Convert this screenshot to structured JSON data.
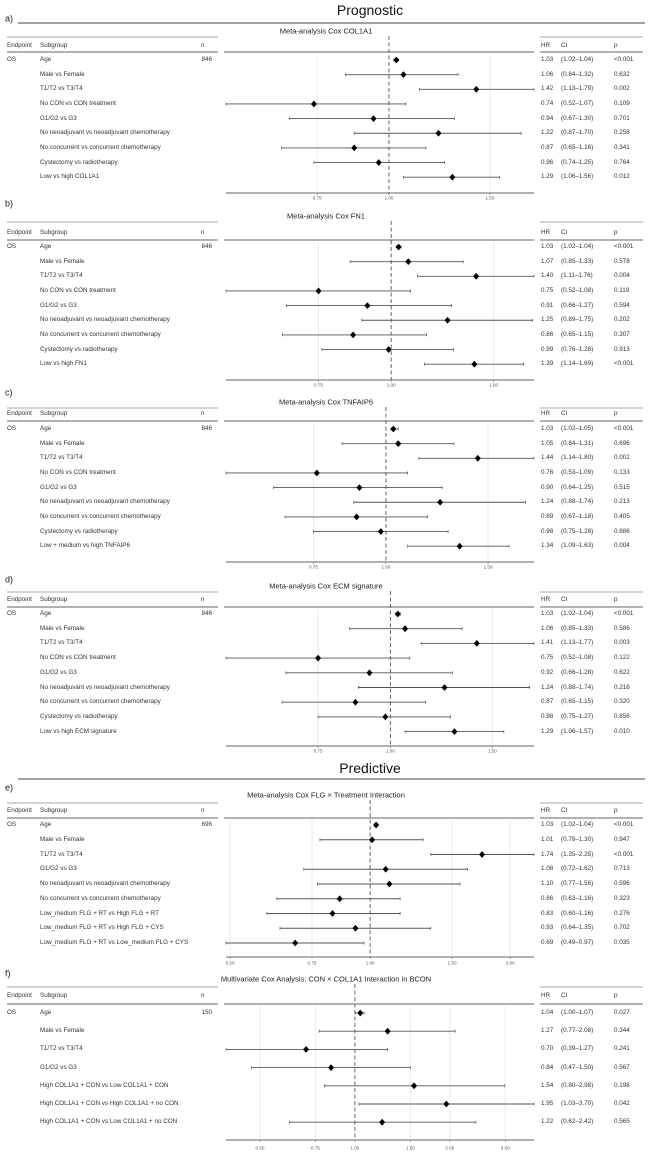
{
  "sections": {
    "prognostic": "Prognostic",
    "predictive": "Predictive"
  },
  "columns": {
    "endpoint": "Endpoint",
    "subgroup": "Subgroup",
    "n": "n",
    "hr": "HR",
    "ci": "CI",
    "p": "p"
  },
  "colors": {
    "marker": "#000000",
    "ci_line": "#555555",
    "reference": "#666666",
    "grid": "#e6e6e6"
  },
  "chart_data": [
    {
      "type": "forest",
      "label": "a)",
      "section": "prognostic",
      "title": "Meta-analysis Cox COL1A1",
      "endpoint": "OS",
      "n": "846",
      "reference": 1,
      "scale": "log",
      "ticks": [
        0.75,
        1,
        1.5
      ],
      "tick_labels": [
        "0.75",
        "1.00",
        "1.50"
      ],
      "xlim": [
        0.52,
        1.79
      ],
      "rows": [
        {
          "subgroup": "Age",
          "hr": 1.03,
          "lo": 1.02,
          "hi": 1.04,
          "hr_text": "1.03",
          "ci_text": "(1.02–1.04)",
          "p": "<0.001"
        },
        {
          "subgroup": "Male vs Female",
          "hr": 1.06,
          "lo": 0.84,
          "hi": 1.32,
          "hr_text": "1.06",
          "ci_text": "(0.84–1.32)",
          "p": "0.632"
        },
        {
          "subgroup": "T1/T2 vs T3/T4",
          "hr": 1.42,
          "lo": 1.13,
          "hi": 1.79,
          "hr_text": "1.42",
          "ci_text": "(1.13–1.79)",
          "p": "0.002"
        },
        {
          "subgroup": "No CON vs CON treatment",
          "hr": 0.74,
          "lo": 0.52,
          "hi": 1.07,
          "hr_text": "0.74",
          "ci_text": "(0.52–1.07)",
          "p": "0.109"
        },
        {
          "subgroup": "G1/G2 vs G3",
          "hr": 0.94,
          "lo": 0.67,
          "hi": 1.3,
          "hr_text": "0.94",
          "ci_text": "(0.67–1.30)",
          "p": "0.701"
        },
        {
          "subgroup": "No neoadjuvant vs neoadjuvant chemotherapy",
          "hr": 1.22,
          "lo": 0.87,
          "hi": 1.7,
          "hr_text": "1.22",
          "ci_text": "(0.87–1.70)",
          "p": "0.258"
        },
        {
          "subgroup": "No concurrent vs concurrent chemotherapy",
          "hr": 0.87,
          "lo": 0.65,
          "hi": 1.16,
          "hr_text": "0.87",
          "ci_text": "(0.65–1.16)",
          "p": "0.341"
        },
        {
          "subgroup": "Cystectomy vs radiotherapy",
          "hr": 0.96,
          "lo": 0.74,
          "hi": 1.25,
          "hr_text": "0.96",
          "ci_text": "(0.74–1.25)",
          "p": "0.764"
        },
        {
          "subgroup": "Low vs high COL1A1",
          "hr": 1.29,
          "lo": 1.06,
          "hi": 1.56,
          "hr_text": "1.29",
          "ci_text": "(1.06–1.56)",
          "p": "0.012"
        }
      ]
    },
    {
      "type": "forest",
      "label": "b)",
      "section": "prognostic",
      "title": "Meta-analysis Cox FN1",
      "endpoint": "OS",
      "n": "846",
      "reference": 1,
      "scale": "log",
      "ticks": [
        0.75,
        1,
        1.5
      ],
      "tick_labels": [
        "0.75",
        "1.00",
        "1.50"
      ],
      "xlim": [
        0.52,
        1.76
      ],
      "rows": [
        {
          "subgroup": "Age",
          "hr": 1.03,
          "lo": 1.02,
          "hi": 1.04,
          "hr_text": "1.03",
          "ci_text": "(1.02–1.04)",
          "p": "<0.001"
        },
        {
          "subgroup": "Male vs Female",
          "hr": 1.07,
          "lo": 0.85,
          "hi": 1.33,
          "hr_text": "1.07",
          "ci_text": "(0.85–1.33)",
          "p": "0.578"
        },
        {
          "subgroup": "T1/T2 vs T3/T4",
          "hr": 1.4,
          "lo": 1.11,
          "hi": 1.76,
          "hr_text": "1.40",
          "ci_text": "(1.11–1.76)",
          "p": "0.004"
        },
        {
          "subgroup": "No CON vs CON treatment",
          "hr": 0.75,
          "lo": 0.52,
          "hi": 1.08,
          "hr_text": "0.75",
          "ci_text": "(0.52–1.08)",
          "p": "0.119"
        },
        {
          "subgroup": "G1/G2 vs G3",
          "hr": 0.91,
          "lo": 0.66,
          "hi": 1.27,
          "hr_text": "0.91",
          "ci_text": "(0.66–1.27)",
          "p": "0.594"
        },
        {
          "subgroup": "No neoadjuvant vs neoadjuvant chemotherapy",
          "hr": 1.25,
          "lo": 0.89,
          "hi": 1.75,
          "hr_text": "1.25",
          "ci_text": "(0.89–1.75)",
          "p": "0.202"
        },
        {
          "subgroup": "No concurrent vs concurrent chemotherapy",
          "hr": 0.86,
          "lo": 0.65,
          "hi": 1.15,
          "hr_text": "0.86",
          "ci_text": "(0.65–1.15)",
          "p": "0.307"
        },
        {
          "subgroup": "Cystectomy vs radiotherapy",
          "hr": 0.99,
          "lo": 0.76,
          "hi": 1.28,
          "hr_text": "0.99",
          "ci_text": "(0.76–1.28)",
          "p": "0.913"
        },
        {
          "subgroup": "Low vs high FN1",
          "hr": 1.39,
          "lo": 1.14,
          "hi": 1.69,
          "hr_text": "1.39",
          "ci_text": "(1.14–1.69)",
          "p": "<0.001"
        }
      ]
    },
    {
      "type": "forest",
      "label": "c)",
      "section": "prognostic",
      "title": "Meta-analysis Cox TNFAIP6",
      "endpoint": "OS",
      "n": "846",
      "reference": 1,
      "scale": "log",
      "ticks": [
        0.75,
        1,
        1.5
      ],
      "tick_labels": [
        "0.75",
        "1.00",
        "1.50"
      ],
      "xlim": [
        0.53,
        1.8
      ],
      "rows": [
        {
          "subgroup": "Age",
          "hr": 1.03,
          "lo": 1.02,
          "hi": 1.05,
          "hr_text": "1.03",
          "ci_text": "(1.02–1.05)",
          "p": "<0.001"
        },
        {
          "subgroup": "Male vs Female",
          "hr": 1.05,
          "lo": 0.84,
          "hi": 1.31,
          "hr_text": "1.05",
          "ci_text": "(0.84–1.31)",
          "p": "0.696"
        },
        {
          "subgroup": "T1/T2 vs T3/T4",
          "hr": 1.44,
          "lo": 1.14,
          "hi": 1.8,
          "hr_text": "1.44",
          "ci_text": "(1.14–1.80)",
          "p": "0.002"
        },
        {
          "subgroup": "No CON vs CON treatment",
          "hr": 0.76,
          "lo": 0.53,
          "hi": 1.09,
          "hr_text": "0.76",
          "ci_text": "(0.53–1.09)",
          "p": "0.133"
        },
        {
          "subgroup": "G1/G2 vs G3",
          "hr": 0.9,
          "lo": 0.64,
          "hi": 1.25,
          "hr_text": "0.90",
          "ci_text": "(0.64–1.25)",
          "p": "0.515"
        },
        {
          "subgroup": "No neoadjuvant vs neoadjuvant chemotherapy",
          "hr": 1.24,
          "lo": 0.88,
          "hi": 1.74,
          "hr_text": "1.24",
          "ci_text": "(0.88–1.74)",
          "p": "0.213"
        },
        {
          "subgroup": "No concurrent vs concurrent chemotherapy",
          "hr": 0.89,
          "lo": 0.67,
          "hi": 1.18,
          "hr_text": "0.89",
          "ci_text": "(0.67–1.18)",
          "p": "0.405"
        },
        {
          "subgroup": "Cystectomy vs radiotherapy",
          "hr": 0.98,
          "lo": 0.75,
          "hi": 1.28,
          "hr_text": "0.98",
          "ci_text": "(0.75–1.28)",
          "p": "0.886"
        },
        {
          "subgroup": "Low + medium vs high TNFAIP6",
          "hr": 1.34,
          "lo": 1.09,
          "hi": 1.63,
          "hr_text": "1.34",
          "ci_text": "(1.09–1.63)",
          "p": "0.004"
        }
      ]
    },
    {
      "type": "forest",
      "label": "d)",
      "section": "prognostic",
      "title": "Meta-analysis Cox ECM signature",
      "endpoint": "OS",
      "n": "846",
      "reference": 1,
      "scale": "log",
      "ticks": [
        0.75,
        1,
        1.5
      ],
      "tick_labels": [
        "0.75",
        "1.00",
        "1.50"
      ],
      "xlim": [
        0.52,
        1.77
      ],
      "rows": [
        {
          "subgroup": "Age",
          "hr": 1.03,
          "lo": 1.02,
          "hi": 1.04,
          "hr_text": "1.03",
          "ci_text": "(1.02–1.04)",
          "p": "<0.001"
        },
        {
          "subgroup": "Male vs Female",
          "hr": 1.06,
          "lo": 0.85,
          "hi": 1.33,
          "hr_text": "1.06",
          "ci_text": "(0.85–1.33)",
          "p": "0.586"
        },
        {
          "subgroup": "T1/T2 vs T3/T4",
          "hr": 1.41,
          "lo": 1.13,
          "hi": 1.77,
          "hr_text": "1.41",
          "ci_text": "(1.13–1.77)",
          "p": "0.003"
        },
        {
          "subgroup": "No CON vs CON treatment",
          "hr": 0.75,
          "lo": 0.52,
          "hi": 1.08,
          "hr_text": "0.75",
          "ci_text": "(0.52–1.08)",
          "p": "0.122"
        },
        {
          "subgroup": "G1/G2 vs G3",
          "hr": 0.92,
          "lo": 0.66,
          "hi": 1.28,
          "hr_text": "0.92",
          "ci_text": "(0.66–1.28)",
          "p": "0.622"
        },
        {
          "subgroup": "No neoadjuvant vs neoadjuvant chemotherapy",
          "hr": 1.24,
          "lo": 0.88,
          "hi": 1.74,
          "hr_text": "1.24",
          "ci_text": "(0.88–1.74)",
          "p": "0.216"
        },
        {
          "subgroup": "No concurrent vs concurrent chemotherapy",
          "hr": 0.87,
          "lo": 0.65,
          "hi": 1.15,
          "hr_text": "0.87",
          "ci_text": "(0.65–1.15)",
          "p": "0.320"
        },
        {
          "subgroup": "Cystectomy vs radiotherapy",
          "hr": 0.98,
          "lo": 0.75,
          "hi": 1.27,
          "hr_text": "0.98",
          "ci_text": "(0.75–1.27)",
          "p": "0.856"
        },
        {
          "subgroup": "Low vs high ECM signature",
          "hr": 1.29,
          "lo": 1.06,
          "hi": 1.57,
          "hr_text": "1.29",
          "ci_text": "(1.06–1.57)",
          "p": "0.010"
        }
      ]
    },
    {
      "type": "forest",
      "label": "e)",
      "section": "predictive",
      "title": "Meta-analysis Cox FLG × Treatment Interaction",
      "endpoint": "OS",
      "n": "696",
      "reference": 1,
      "scale": "log",
      "ticks": [
        0.5,
        0.75,
        1,
        1.5,
        2
      ],
      "tick_labels": [
        "0.50",
        "0.75",
        "1.00",
        "1.50",
        "2.00"
      ],
      "xlim": [
        0.49,
        2.25
      ],
      "rows": [
        {
          "subgroup": "Age",
          "hr": 1.03,
          "lo": 1.02,
          "hi": 1.04,
          "hr_text": "1.03",
          "ci_text": "(1.02–1.04)",
          "p": "<0.001"
        },
        {
          "subgroup": "Male vs Female",
          "hr": 1.01,
          "lo": 0.78,
          "hi": 1.3,
          "hr_text": "1.01",
          "ci_text": "(0.78–1.30)",
          "p": "0.947"
        },
        {
          "subgroup": "T1/T2 vs T3/T4",
          "hr": 1.74,
          "lo": 1.35,
          "hi": 2.25,
          "hr_text": "1.74",
          "ci_text": "(1.35–2.25)",
          "p": "<0.001"
        },
        {
          "subgroup": "G1/G2 vs G3",
          "hr": 1.08,
          "lo": 0.72,
          "hi": 1.62,
          "hr_text": "1.08",
          "ci_text": "(0.72–1.62)",
          "p": "0.713"
        },
        {
          "subgroup": "No neoadjuvant vs neoadjuvant chemotherapy",
          "hr": 1.1,
          "lo": 0.77,
          "hi": 1.56,
          "hr_text": "1.10",
          "ci_text": "(0.77–1.56)",
          "p": "0.596"
        },
        {
          "subgroup": "No concurrent vs concurrent chemotherapy",
          "hr": 0.86,
          "lo": 0.63,
          "hi": 1.16,
          "hr_text": "0.86",
          "ci_text": "(0.63–1.16)",
          "p": "0.323"
        },
        {
          "subgroup": "Low_medium FLG + RT vs High FLG + RT",
          "hr": 0.83,
          "lo": 0.6,
          "hi": 1.16,
          "hr_text": "0.83",
          "ci_text": "(0.60–1.16)",
          "p": "0.276"
        },
        {
          "subgroup": "Low_medium FLG + RT vs High FLG + CYS",
          "hr": 0.93,
          "lo": 0.64,
          "hi": 1.35,
          "hr_text": "0.93",
          "ci_text": "(0.64–1.35)",
          "p": "0.702"
        },
        {
          "subgroup": "Low_medium FLG + RT vs Low_medium FLG + CYS",
          "hr": 0.69,
          "lo": 0.49,
          "hi": 0.97,
          "hr_text": "0.69",
          "ci_text": "(0.49–0.97)",
          "p": "0.035"
        }
      ]
    },
    {
      "type": "forest",
      "label": "f)",
      "section": "predictive",
      "title": "Multivariate Cox Analysis: CON × COL1A1 Interaction in BCON",
      "endpoint": "OS",
      "n": "150",
      "reference": 1,
      "scale": "log",
      "ticks": [
        0.5,
        0.75,
        1,
        1.5,
        2,
        3
      ],
      "tick_labels": [
        "0.50",
        "0.75",
        "1.00",
        "1.50",
        "2.00",
        "3.00"
      ],
      "xlim": [
        0.39,
        3.7
      ],
      "rows": [
        {
          "subgroup": "Age",
          "hr": 1.04,
          "lo": 1.0,
          "hi": 1.07,
          "hr_text": "1.04",
          "ci_text": "(1.00–1.07)",
          "p": "0.027"
        },
        {
          "subgroup": "Male vs Female",
          "hr": 1.27,
          "lo": 0.77,
          "hi": 2.08,
          "hr_text": "1.27",
          "ci_text": "(0.77–2.08)",
          "p": "0.344"
        },
        {
          "subgroup": "T1/T2 vs T3/T4",
          "hr": 0.7,
          "lo": 0.39,
          "hi": 1.27,
          "hr_text": "0.70",
          "ci_text": "(0.39–1.27)",
          "p": "0.241"
        },
        {
          "subgroup": "G1/G2 vs G3",
          "hr": 0.84,
          "lo": 0.47,
          "hi": 1.5,
          "hr_text": "0.84",
          "ci_text": "(0.47–1.50)",
          "p": "0.567"
        },
        {
          "subgroup": "High COL1A1 + CON vs Low COL1A1 + CON",
          "hr": 1.54,
          "lo": 0.8,
          "hi": 2.98,
          "hr_text": "1.54",
          "ci_text": "(0.80–2.98)",
          "p": "0.198"
        },
        {
          "subgroup": "High COL1A1 + CON vs High COL1A1 + no CON",
          "hr": 1.95,
          "lo": 1.03,
          "hi": 3.7,
          "hr_text": "1.95",
          "ci_text": "(1.03–3.70)",
          "p": "0.042"
        },
        {
          "subgroup": "High COL1A1 + CON vs Low COL1A1 + no CON",
          "hr": 1.22,
          "lo": 0.62,
          "hi": 2.42,
          "hr_text": "1.22",
          "ci_text": "(0.62–2.42)",
          "p": "0.565"
        }
      ]
    }
  ]
}
